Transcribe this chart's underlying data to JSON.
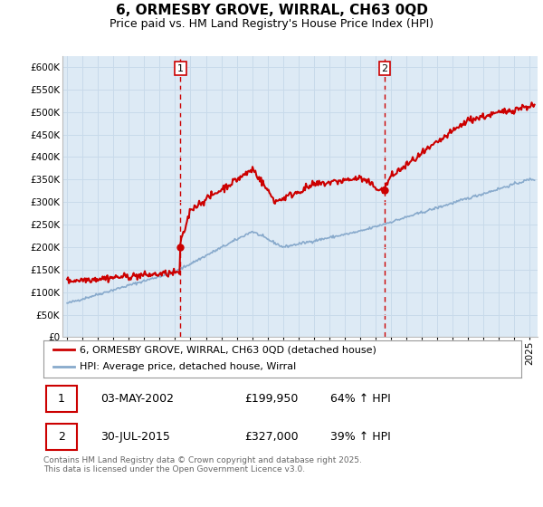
{
  "title": "6, ORMESBY GROVE, WIRRAL, CH63 0QD",
  "subtitle": "Price paid vs. HM Land Registry's House Price Index (HPI)",
  "ylabel_ticks": [
    "£0",
    "£50K",
    "£100K",
    "£150K",
    "£200K",
    "£250K",
    "£300K",
    "£350K",
    "£400K",
    "£450K",
    "£500K",
    "£550K",
    "£600K"
  ],
  "ytick_values": [
    0,
    50000,
    100000,
    150000,
    200000,
    250000,
    300000,
    350000,
    400000,
    450000,
    500000,
    550000,
    600000
  ],
  "ylim": [
    0,
    625000
  ],
  "xlim_start": 1994.7,
  "xlim_end": 2025.5,
  "sale1_x": 2002.34,
  "sale1_y": 199950,
  "sale1_label": "1",
  "sale2_x": 2015.58,
  "sale2_y": 327000,
  "sale2_label": "2",
  "red_line_color": "#cc0000",
  "blue_line_color": "#88aacc",
  "grid_color": "#c8daea",
  "background_color": "#ddeaf5",
  "annotation_line_color": "#cc0000",
  "legend_label_red": "6, ORMESBY GROVE, WIRRAL, CH63 0QD (detached house)",
  "legend_label_blue": "HPI: Average price, detached house, Wirral",
  "table_row1": [
    "1",
    "03-MAY-2002",
    "£199,950",
    "64% ↑ HPI"
  ],
  "table_row2": [
    "2",
    "30-JUL-2015",
    "£327,000",
    "39% ↑ HPI"
  ],
  "footnote": "Contains HM Land Registry data © Crown copyright and database right 2025.\nThis data is licensed under the Open Government Licence v3.0.",
  "title_fontsize": 11,
  "subtitle_fontsize": 9,
  "tick_fontsize": 7.5,
  "legend_fontsize": 8
}
